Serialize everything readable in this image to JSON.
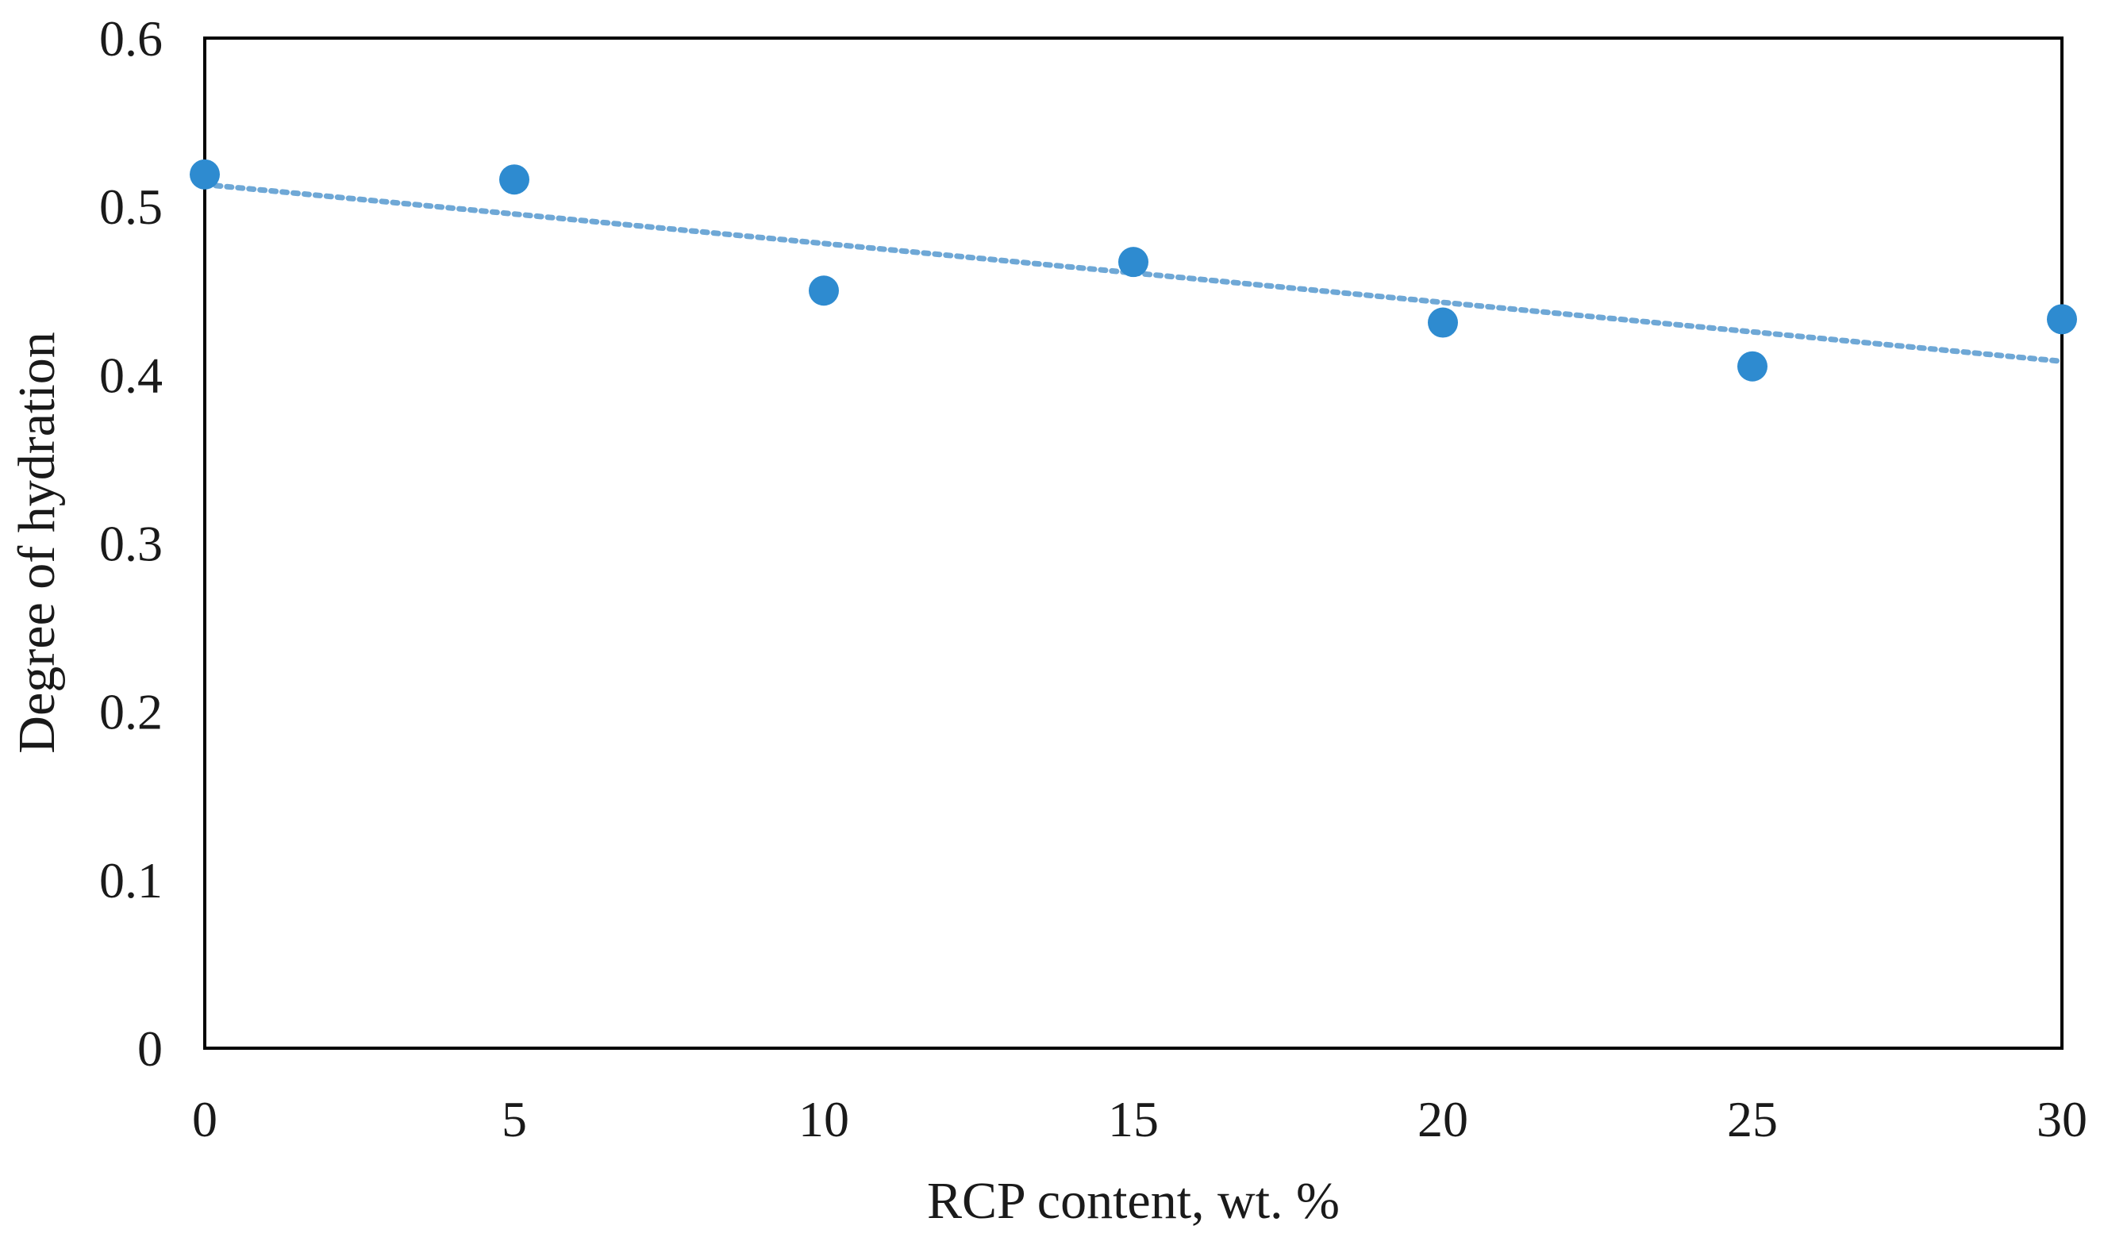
{
  "chart_data": {
    "type": "scatter",
    "title": "",
    "xlabel": "RCP  content, wt. %",
    "ylabel": "Degree of hydration",
    "xlim": [
      0,
      30
    ],
    "ylim": [
      0,
      0.6
    ],
    "x_ticks": [
      0,
      5,
      10,
      15,
      20,
      25,
      30
    ],
    "y_ticks": [
      0,
      0.1,
      0.2,
      0.3,
      0.4,
      0.5,
      0.6
    ],
    "x_tick_labels": [
      "0",
      "5",
      "10",
      "15",
      "20",
      "25",
      "30"
    ],
    "y_tick_labels": [
      "0",
      "0.1",
      "0.2",
      "0.3",
      "0.4",
      "0.5",
      "0.6"
    ],
    "grid": false,
    "legend": "none",
    "series": [
      {
        "x": [
          0,
          5,
          10,
          15,
          20,
          25,
          30
        ],
        "y": [
          0.519,
          0.516,
          0.45,
          0.467,
          0.431,
          0.405,
          0.433
        ],
        "color": "#2e8bd0",
        "marker": "circle"
      }
    ],
    "trendline": {
      "type": "linear",
      "y_at_xmin": 0.513,
      "y_at_xmax": 0.408,
      "color": "#6fa8d6",
      "style": "dotted"
    }
  }
}
